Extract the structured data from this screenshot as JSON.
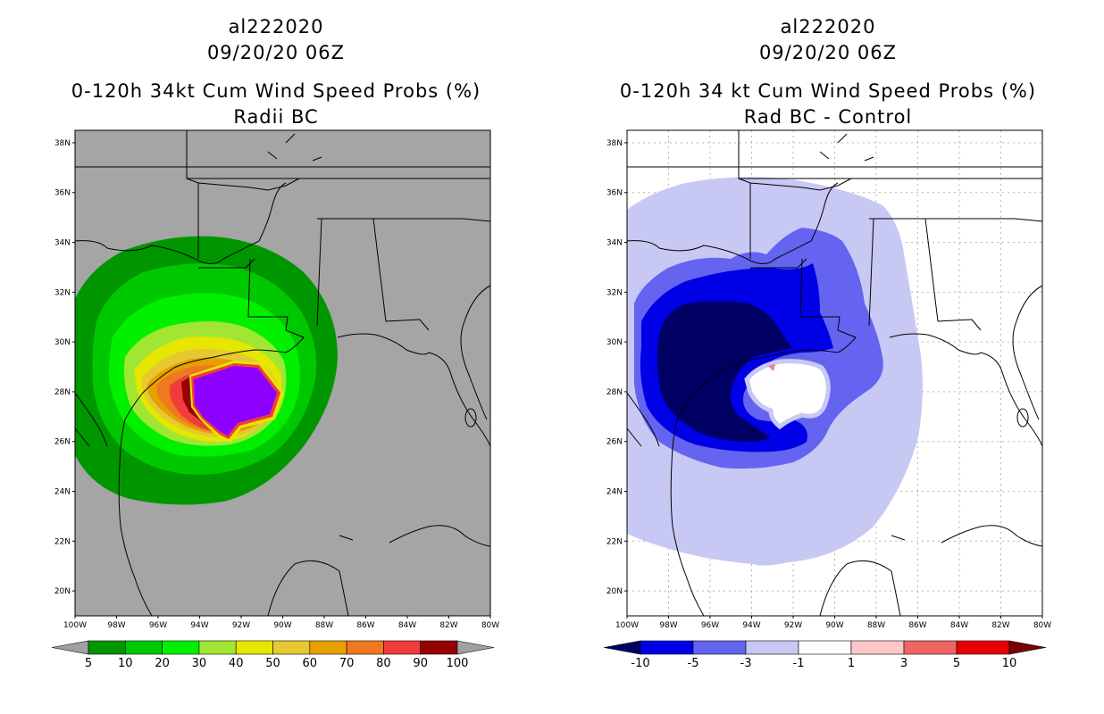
{
  "left_panel": {
    "storm_id": "al222020",
    "datetime": "09/20/20 06Z",
    "title_line1": "0-120h 34kt Cum Wind Speed Probs (%)",
    "title_line2": "Radii BC",
    "colorbar": {
      "labels": [
        "5",
        "10",
        "20",
        "30",
        "40",
        "50",
        "60",
        "70",
        "80",
        "90",
        "100"
      ],
      "colors": [
        "#009600",
        "#00c800",
        "#00f000",
        "#a0e632",
        "#e6e600",
        "#e6c832",
        "#e6a000",
        "#f07820",
        "#f03c3c",
        "#960000",
        "#8c00ff",
        "#a0a0a0"
      ]
    }
  },
  "right_panel": {
    "storm_id": "al222020",
    "datetime": "09/20/20 06Z",
    "title_line1": "0-120h 34 kt Cum Wind Speed Probs (%)",
    "title_line2": "Rad BC - Control",
    "colorbar": {
      "labels": [
        "-10",
        "-5",
        "-3",
        "-1",
        "1",
        "3",
        "5",
        "10"
      ],
      "colors": [
        "#000064",
        "#0000e6",
        "#6464f0",
        "#c8c8f5",
        "#ffffff",
        "#ffc8c8",
        "#f06464",
        "#e60000",
        "#780000"
      ]
    }
  },
  "axes": {
    "lat_labels": [
      "38N",
      "36N",
      "34N",
      "32N",
      "30N",
      "28N",
      "26N",
      "24N",
      "22N",
      "20N"
    ],
    "lon_labels": [
      "100W",
      "98W",
      "96W",
      "94W",
      "92W",
      "90W",
      "88W",
      "86W",
      "84W",
      "82W",
      "80W"
    ]
  },
  "colors": {
    "land_bg_left": "#a5a5a5",
    "grid": "#b4b4b4"
  }
}
